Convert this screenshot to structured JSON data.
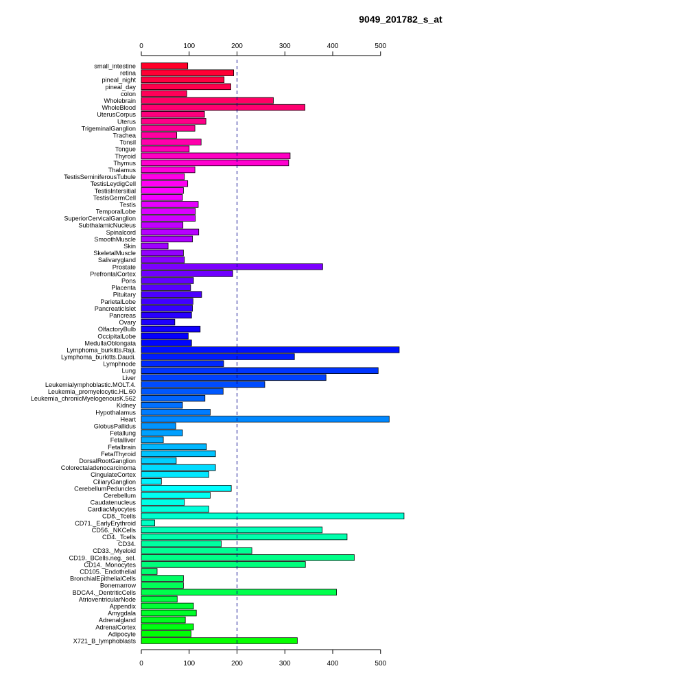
{
  "chart_data": {
    "type": "bar",
    "orientation": "horizontal",
    "title": "9049_201782_s_at",
    "xlabel": "",
    "ylabel": "",
    "xlim": [
      0,
      550
    ],
    "x_ticks": [
      0,
      100,
      200,
      300,
      400,
      500
    ],
    "reference_line": 200,
    "grid": false,
    "legend": "none",
    "categories": [
      "small_intestine",
      "retina",
      "pineal_night",
      "pineal_day",
      "colon",
      "Wholebrain",
      "WholeBlood",
      "UterusCorpus",
      "Uterus",
      "TrigeminalGanglion",
      "Trachea",
      "Tonsil",
      "Tongue",
      "Thyroid",
      "Thymus",
      "Thalamus",
      "TestisSeminiferousTubule",
      "TestisLeydigCell",
      "TestisIntersitial",
      "TestisGermCell",
      "Testis",
      "TemporalLobe",
      "SuperiorCervicalGanglion",
      "SubthalamicNucleus",
      "Spinalcord",
      "SmoothMuscle",
      "Skin",
      "SkeletalMuscle",
      "Salivarygland",
      "Prostate",
      "PrefrontalCortex",
      "Pons",
      "Placenta",
      "Pituitary",
      "ParietalLobe",
      "PancreaticIslet",
      "Pancreas",
      "Ovary",
      "OlfactoryBulb",
      "OccipitalLobe",
      "MedullaOblongata",
      "Lymphoma_burkitts.Raji.",
      "Lymphoma_burkitts.Daudi.",
      "Lymphnode",
      "Lung",
      "Liver",
      "Leukemialymphoblastic.MOLT.4.",
      "Leukemia_promyelocytic.HL.60",
      "Leukemia_chronicMyelogenousK.562",
      "Kidney",
      "Hypothalamus",
      "Heart",
      "GlobusPallidus",
      "Fetallung",
      "Fetalliver",
      "Fetalbrain",
      "FetalThyroid",
      "DorsalRootGanglion",
      "Colorectaladenocarcinoma",
      "CingulateCortex",
      "CiliaryGanglion",
      "CerebellumPeduncles",
      "Cerebellum",
      "Caudatenucleus",
      "CardiacMyocytes",
      "CD8._Tcells",
      "CD71._EarlyErythroid",
      "CD56._NKCells",
      "CD4._Tcells",
      "CD34.",
      "CD33._Myeloid",
      "CD19._BCells.neg._sel.",
      "CD14._Monocytes",
      "CD105._Endothelial",
      "BronchialEpithelialCells",
      "Bonemarrow",
      "BDCA4._DentriticCells",
      "AtrioventricularNode",
      "Appendix",
      "Amygdala",
      "Adrenalgland",
      "AdrenalCortex",
      "Adipocyte",
      "X721_B_lymphoblasts"
    ],
    "values": [
      97,
      193,
      173,
      187,
      95,
      276,
      342,
      132,
      135,
      112,
      74,
      125,
      100,
      311,
      308,
      112,
      90,
      97,
      88,
      86,
      119,
      113,
      113,
      87,
      120,
      107,
      56,
      88,
      90,
      379,
      191,
      109,
      103,
      126,
      108,
      107,
      105,
      70,
      123,
      98,
      105,
      539,
      320,
      172,
      495,
      386,
      258,
      171,
      133,
      86,
      144,
      518,
      72,
      86,
      46,
      136,
      155,
      73,
      155,
      141,
      42,
      188,
      144,
      90,
      141,
      549,
      28,
      378,
      430,
      167,
      231,
      445,
      343,
      33,
      88,
      88,
      408,
      75,
      109,
      115,
      92,
      109,
      104,
      326
    ],
    "colors": [
      "#FF0029",
      "#FF0035",
      "#FF0041",
      "#FF004C",
      "#FF0058",
      "#FF0064",
      "#FF0070",
      "#FF007C",
      "#FF0088",
      "#FF0094",
      "#FF00A0",
      "#FF00AC",
      "#FF00B7",
      "#FF00C3",
      "#FF00CF",
      "#FF00DB",
      "#FF00E7",
      "#FF00F3",
      "#FF00FF",
      "#F300FF",
      "#E700FF",
      "#DB00FF",
      "#CF00FF",
      "#C300FF",
      "#B700FF",
      "#AC00FF",
      "#A000FF",
      "#9400FF",
      "#8800FF",
      "#7C00FF",
      "#7000FF",
      "#6400FF",
      "#5800FF",
      "#4C00FF",
      "#4100FF",
      "#3500FF",
      "#2900FF",
      "#1D00FF",
      "#1100FF",
      "#0500FF",
      "#0005FF",
      "#0011FF",
      "#001DFF",
      "#0029FF",
      "#0035FF",
      "#0041FF",
      "#004CFF",
      "#0058FF",
      "#0064FF",
      "#0070FF",
      "#007CFF",
      "#0088FF",
      "#0094FF",
      "#00A0FF",
      "#00ACFF",
      "#00B7FF",
      "#00C3FF",
      "#00CFFF",
      "#00DBFF",
      "#00E7FF",
      "#00F3FF",
      "#00FFFF",
      "#00FFF3",
      "#00FFE7",
      "#00FFDB",
      "#00FFCF",
      "#00FFC3",
      "#00FFB7",
      "#00FFAC",
      "#00FFA0",
      "#00FF94",
      "#00FF88",
      "#00FF7C",
      "#00FF70",
      "#00FF64",
      "#00FF58",
      "#00FF4C",
      "#00FF41",
      "#00FF35",
      "#00FF29",
      "#00FF1D",
      "#00FF11",
      "#00FF05",
      "#05FF00"
    ]
  }
}
